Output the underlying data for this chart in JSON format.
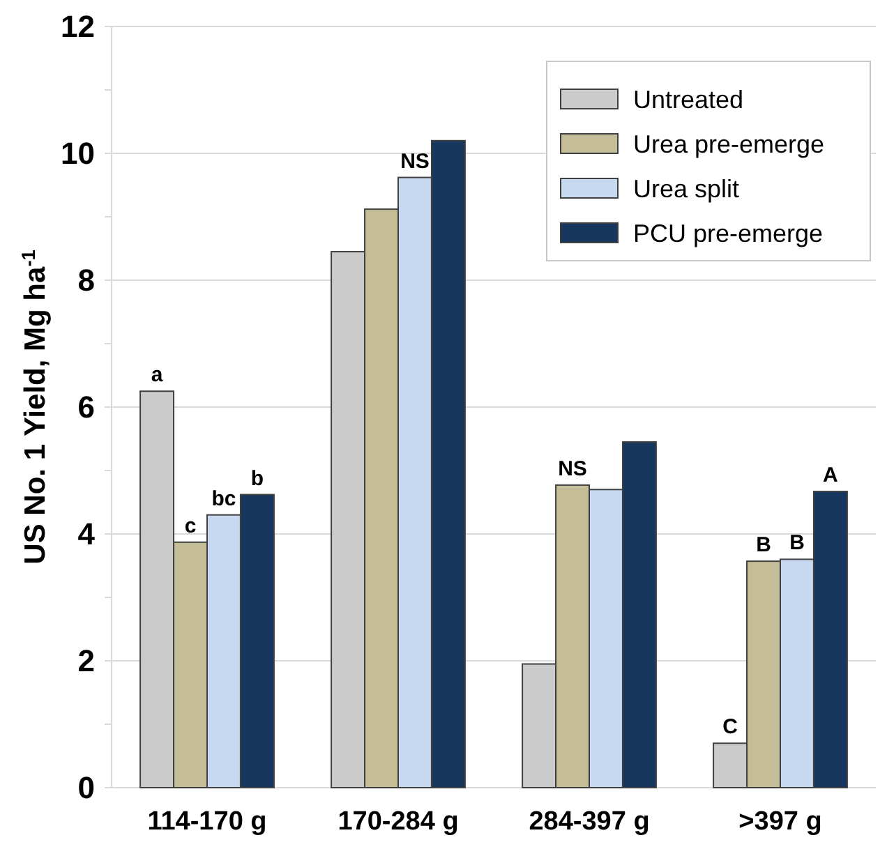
{
  "chart_data": {
    "type": "bar",
    "ylabel": "US No. 1 Yield, Mg ha$^{-1}$",
    "categories": [
      "114-170 g",
      "170-284 g",
      "284-397 g",
      ">397 g"
    ],
    "series": [
      {
        "name": "Untreated",
        "color": "#cbcbcb",
        "values": [
          6.25,
          8.45,
          1.95,
          0.7
        ],
        "value_labels": [
          "a",
          null,
          null,
          "C"
        ]
      },
      {
        "name": "Urea pre-emerge",
        "color": "#c4bd97",
        "values": [
          3.87,
          9.12,
          4.77,
          3.57
        ],
        "value_labels": [
          "c",
          null,
          "NS",
          "B"
        ]
      },
      {
        "name": "Urea split",
        "color": "#c6d9f1",
        "values": [
          4.3,
          9.62,
          4.7,
          3.6
        ],
        "value_labels": [
          "bc",
          "NS",
          null,
          "B"
        ]
      },
      {
        "name": "PCU pre-emerge",
        "color": "#17375e",
        "values": [
          4.62,
          10.2,
          5.45,
          4.67
        ],
        "value_labels": [
          "b",
          null,
          null,
          "A"
        ]
      }
    ],
    "ylim": [
      0,
      12
    ],
    "yticks": [
      0,
      {
        "value": 1,
        "label": null
      },
      2,
      {
        "value": 3,
        "label": null
      },
      4,
      {
        "value": 5,
        "label": null
      },
      6,
      {
        "value": 7,
        "label": null
      },
      8,
      {
        "value": 9,
        "label": null
      },
      10,
      {
        "value": 11,
        "label": null
      },
      12
    ],
    "grid": "y",
    "legend": "top right"
  }
}
